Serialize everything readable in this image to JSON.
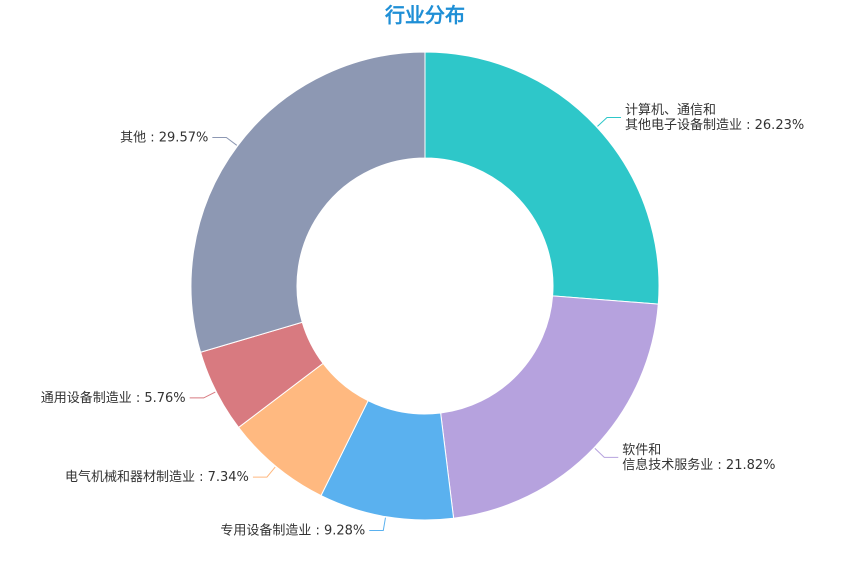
{
  "chart_data": {
    "type": "pie",
    "variant": "donut",
    "title": "行业分布",
    "title_color": "#1f8fd6",
    "start_angle_deg": 90,
    "direction": "clockwise",
    "slices": [
      {
        "label_lines": [
          "计算机、通信和",
          "其他电子设备制造业"
        ],
        "value": 26.23,
        "value_text": "26.23%",
        "color": "#2ec7c9"
      },
      {
        "label_lines": [
          "软件和",
          "信息技术服务业"
        ],
        "value": 21.82,
        "value_text": "21.82%",
        "color": "#b6a2de"
      },
      {
        "label_lines": [
          "专用设备制造业"
        ],
        "value": 9.28,
        "value_text": "9.28%",
        "color": "#5ab1ef"
      },
      {
        "label_lines": [
          "电气机械和器材制造业"
        ],
        "value": 7.34,
        "value_text": "7.34%",
        "color": "#ffb980"
      },
      {
        "label_lines": [
          "通用设备制造业"
        ],
        "value": 5.76,
        "value_text": "5.76%",
        "color": "#d87a80"
      },
      {
        "label_lines": [
          "其他"
        ],
        "value": 29.57,
        "value_text": "29.57%",
        "color": "#8d98b3"
      }
    ]
  }
}
